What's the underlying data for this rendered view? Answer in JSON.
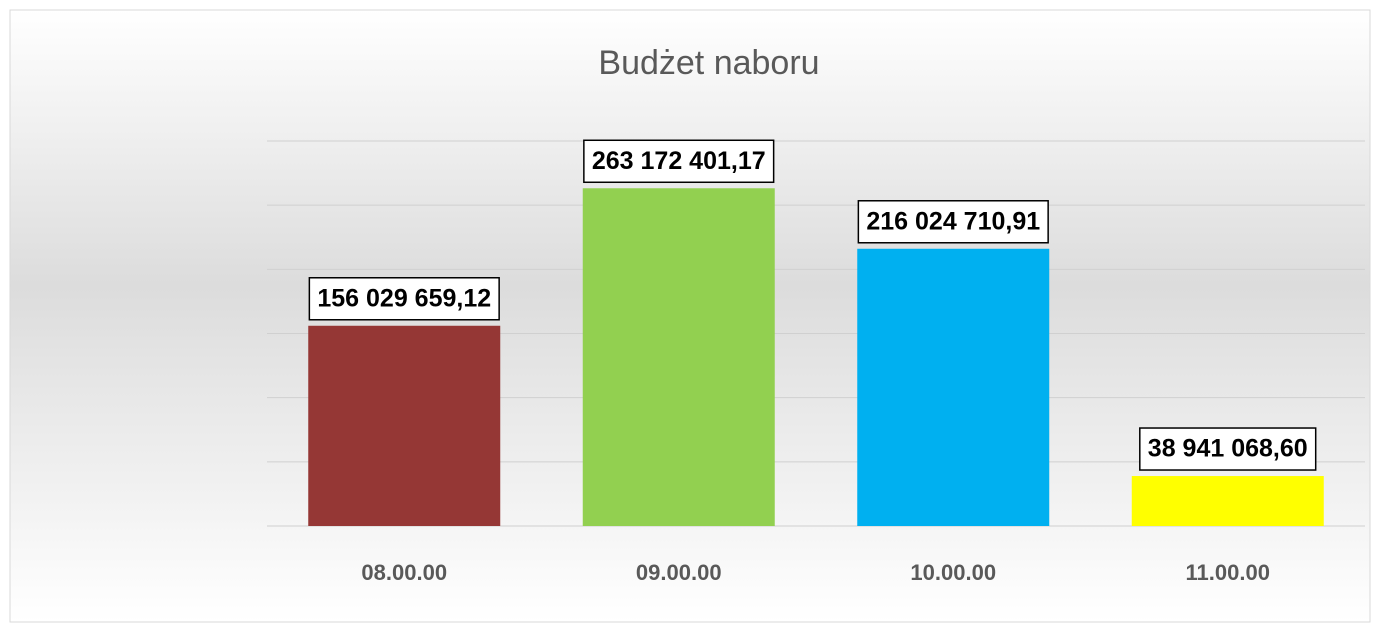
{
  "chart_data": {
    "type": "bar",
    "title": "Budżet naboru",
    "categories": [
      "08.00.00",
      "09.00.00",
      "10.00.00",
      "11.00.00"
    ],
    "values": [
      156029659.12,
      263172401.17,
      216024710.91,
      38941068.6
    ],
    "value_labels": [
      "156 029 659,12",
      "263 172 401,17",
      "216 024 710,91",
      "38 941 068,60"
    ],
    "colors": [
      "#953735",
      "#92d050",
      "#00b0f0",
      "#ffff00"
    ],
    "ylim": [
      0,
      300000000
    ],
    "yticks": [
      0,
      50000000,
      100000000,
      150000000,
      200000000,
      250000000,
      300000000
    ],
    "grid": true
  }
}
